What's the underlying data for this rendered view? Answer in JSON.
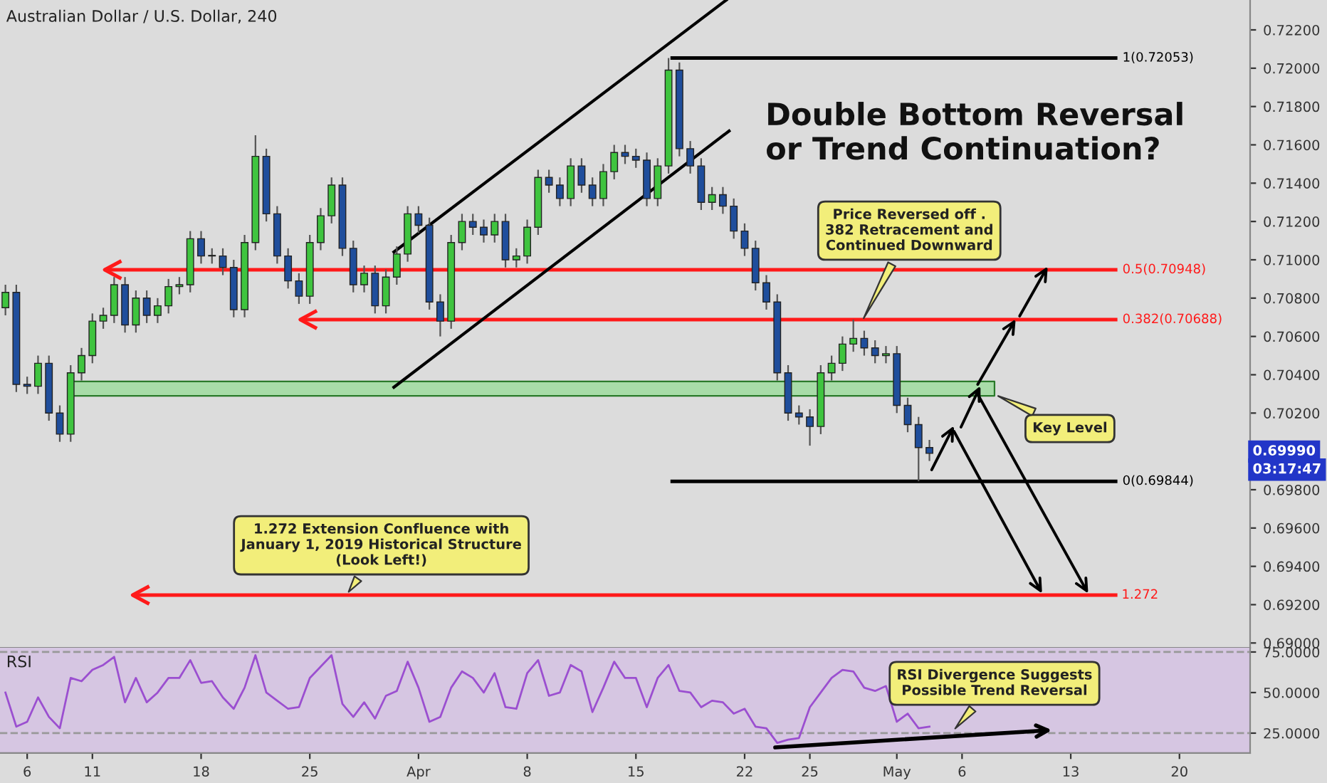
{
  "chart_data": [
    {
      "type": "candlestick",
      "title": "Australian Dollar / U.S. Dollar, 240",
      "categories": [
        null,
        null,
        null,
        null,
        null,
        null,
        null,
        null,
        null,
        null,
        null,
        null,
        null,
        null,
        null,
        null,
        null,
        null,
        null,
        null,
        null,
        null,
        null,
        null,
        null,
        null,
        null,
        null,
        null,
        null,
        null,
        null,
        null,
        null,
        null,
        null,
        null,
        null,
        null,
        null,
        null,
        null,
        null,
        null,
        null,
        null,
        null,
        null,
        null,
        null,
        null,
        null,
        null,
        null,
        null,
        null,
        null,
        null,
        null,
        null,
        null,
        null,
        null,
        null,
        null,
        null,
        null,
        null,
        null,
        null,
        null,
        null,
        null,
        null,
        null,
        null,
        null,
        null,
        null,
        null,
        null,
        null,
        null,
        null,
        null,
        null,
        null,
        null,
        null,
        null,
        null,
        null,
        null,
        null,
        null,
        null,
        null,
        null,
        null,
        null,
        null,
        null,
        null,
        null,
        null,
        null,
        null,
        null,
        null,
        null,
        null,
        null,
        null,
        null,
        null
      ],
      "ohlc": [
        [
          0.7075,
          0.7087,
          0.7071,
          0.7083
        ],
        [
          0.7083,
          0.7087,
          0.7031,
          0.7035
        ],
        [
          0.7035,
          0.7039,
          0.703,
          0.7034
        ],
        [
          0.7034,
          0.705,
          0.703,
          0.7046
        ],
        [
          0.7046,
          0.705,
          0.7016,
          0.702
        ],
        [
          0.702,
          0.7024,
          0.7005,
          0.7009
        ],
        [
          0.7009,
          0.7045,
          0.7005,
          0.7041
        ],
        [
          0.7041,
          0.7054,
          0.7037,
          0.705
        ],
        [
          0.705,
          0.7072,
          0.7046,
          0.7068
        ],
        [
          0.7068,
          0.7075,
          0.7064,
          0.7071
        ],
        [
          0.7071,
          0.7091,
          0.7067,
          0.7087
        ],
        [
          0.7087,
          0.7091,
          0.7062,
          0.7066
        ],
        [
          0.7066,
          0.7084,
          0.7062,
          0.708
        ],
        [
          0.708,
          0.7084,
          0.7067,
          0.7071
        ],
        [
          0.7071,
          0.708,
          0.7067,
          0.7076
        ],
        [
          0.7076,
          0.709,
          0.7072,
          0.7086
        ],
        [
          0.7086,
          0.7091,
          0.7082,
          0.7087
        ],
        [
          0.7087,
          0.7115,
          0.7083,
          0.7111
        ],
        [
          0.7111,
          0.7115,
          0.7098,
          0.7102
        ],
        [
          0.7102,
          0.7106,
          0.7098,
          0.7102
        ],
        [
          0.7102,
          0.7106,
          0.7092,
          0.7096
        ],
        [
          0.7096,
          0.71,
          0.707,
          0.7074
        ],
        [
          0.7074,
          0.7113,
          0.707,
          0.7109
        ],
        [
          0.7109,
          0.7165,
          0.7105,
          0.7154
        ],
        [
          0.7154,
          0.7158,
          0.712,
          0.7124
        ],
        [
          0.7124,
          0.7128,
          0.7098,
          0.7102
        ],
        [
          0.7102,
          0.7106,
          0.7085,
          0.7089
        ],
        [
          0.7089,
          0.7093,
          0.7077,
          0.7081
        ],
        [
          0.7081,
          0.7113,
          0.7077,
          0.7109
        ],
        [
          0.7109,
          0.7127,
          0.7105,
          0.7123
        ],
        [
          0.7123,
          0.7143,
          0.7119,
          0.7139
        ],
        [
          0.7139,
          0.7143,
          0.7102,
          0.7106
        ],
        [
          0.7106,
          0.711,
          0.7083,
          0.7087
        ],
        [
          0.7087,
          0.7097,
          0.7083,
          0.7093
        ],
        [
          0.7093,
          0.7097,
          0.7072,
          0.7076
        ],
        [
          0.7076,
          0.7095,
          0.7072,
          0.7091
        ],
        [
          0.7091,
          0.7107,
          0.7087,
          0.7103
        ],
        [
          0.7103,
          0.7128,
          0.7099,
          0.7124
        ],
        [
          0.7124,
          0.7128,
          0.7114,
          0.7118
        ],
        [
          0.7118,
          0.7122,
          0.7074,
          0.7078
        ],
        [
          0.7078,
          0.7082,
          0.706,
          0.7068
        ],
        [
          0.7068,
          0.7113,
          0.7064,
          0.7109
        ],
        [
          0.7109,
          0.7124,
          0.7105,
          0.712
        ],
        [
          0.712,
          0.7124,
          0.7113,
          0.7117
        ],
        [
          0.7117,
          0.7121,
          0.7109,
          0.7113
        ],
        [
          0.7113,
          0.7124,
          0.7109,
          0.712
        ],
        [
          0.712,
          0.7124,
          0.7096,
          0.71
        ],
        [
          0.71,
          0.7106,
          0.7096,
          0.7102
        ],
        [
          0.7102,
          0.7121,
          0.7098,
          0.7117
        ],
        [
          0.7117,
          0.7147,
          0.7113,
          0.7143
        ],
        [
          0.7143,
          0.7147,
          0.7135,
          0.7139
        ],
        [
          0.7139,
          0.7143,
          0.7128,
          0.7132
        ],
        [
          0.7132,
          0.7153,
          0.7128,
          0.7149
        ],
        [
          0.7149,
          0.7153,
          0.7135,
          0.7139
        ],
        [
          0.7139,
          0.7143,
          0.7128,
          0.7132
        ],
        [
          0.7132,
          0.715,
          0.7128,
          0.7146
        ],
        [
          0.7146,
          0.716,
          0.7142,
          0.7156
        ],
        [
          0.7156,
          0.716,
          0.715,
          0.7154
        ],
        [
          0.7154,
          0.7158,
          0.7148,
          0.7152
        ],
        [
          0.7152,
          0.7156,
          0.7128,
          0.7132
        ],
        [
          0.7132,
          0.7153,
          0.7128,
          0.7149
        ],
        [
          0.7149,
          0.72053,
          0.7145,
          0.7199
        ],
        [
          0.7199,
          0.7203,
          0.7154,
          0.7158
        ],
        [
          0.7158,
          0.7162,
          0.7145,
          0.7149
        ],
        [
          0.7149,
          0.7153,
          0.7126,
          0.713
        ],
        [
          0.713,
          0.7138,
          0.7126,
          0.7134
        ],
        [
          0.7134,
          0.7138,
          0.7124,
          0.7128
        ],
        [
          0.7128,
          0.7132,
          0.7111,
          0.7115
        ],
        [
          0.7115,
          0.7119,
          0.7102,
          0.7106
        ],
        [
          0.7106,
          0.711,
          0.7084,
          0.7088
        ],
        [
          0.7088,
          0.7092,
          0.7074,
          0.7078
        ],
        [
          0.7078,
          0.7082,
          0.7037,
          0.7041
        ],
        [
          0.7041,
          0.7045,
          0.7016,
          0.702
        ],
        [
          0.702,
          0.7024,
          0.7014,
          0.7018
        ],
        [
          0.7018,
          0.7022,
          0.7003,
          0.7013
        ],
        [
          0.7013,
          0.7045,
          0.7009,
          0.7041
        ],
        [
          0.7041,
          0.705,
          0.7037,
          0.7046
        ],
        [
          0.7046,
          0.706,
          0.7042,
          0.7056
        ],
        [
          0.7056,
          0.70688,
          0.7052,
          0.7059
        ],
        [
          0.7059,
          0.7063,
          0.705,
          0.7054
        ],
        [
          0.7054,
          0.7058,
          0.7046,
          0.705
        ],
        [
          0.705,
          0.7055,
          0.7046,
          0.7051
        ],
        [
          0.7051,
          0.7055,
          0.702,
          0.7024
        ],
        [
          0.7024,
          0.7028,
          0.701,
          0.7014
        ],
        [
          0.7014,
          0.7018,
          0.69844,
          0.7002
        ],
        [
          0.7002,
          0.7006,
          0.6995,
          0.6999
        ],
        null,
        null,
        null,
        null,
        null,
        null,
        null,
        null,
        null,
        null,
        null,
        null,
        null,
        null,
        null,
        null,
        null,
        null,
        null,
        null,
        null,
        null,
        null,
        null,
        null,
        null,
        null,
        null,
        null
      ],
      "ylim": [
        0.68975,
        0.72356
      ],
      "yticks": [
        {
          "value": 0.69,
          "label": "0.69000"
        },
        {
          "value": 0.692,
          "label": "0.69200"
        },
        {
          "value": 0.694,
          "label": "0.69400"
        },
        {
          "value": 0.696,
          "label": "0.69600"
        },
        {
          "value": 0.698,
          "label": "0.69800"
        },
        {
          "value": 0.702,
          "label": "0.70200"
        },
        {
          "value": 0.704,
          "label": "0.70400"
        },
        {
          "value": 0.706,
          "label": "0.70600"
        },
        {
          "value": 0.708,
          "label": "0.70800"
        },
        {
          "value": 0.71,
          "label": "0.71000"
        },
        {
          "value": 0.712,
          "label": "0.71200"
        },
        {
          "value": 0.714,
          "label": "0.71400"
        },
        {
          "value": 0.716,
          "label": "0.71600"
        },
        {
          "value": 0.718,
          "label": "0.71800"
        },
        {
          "value": 0.72,
          "label": "0.72000"
        },
        {
          "value": 0.722,
          "label": "0.72200"
        }
      ],
      "tick_labels": "y",
      "ref_lines": [
        {
          "axis": "y",
          "value": 0.72053,
          "label": "1(0.72053)",
          "color": "#000000"
        },
        {
          "axis": "y",
          "value": 0.70948,
          "label": "0.5(0.70948)",
          "color": "#ff1a1a"
        },
        {
          "axis": "y",
          "value": 0.70688,
          "label": "0.382(0.70688)",
          "color": "#ff1a1a"
        },
        {
          "axis": "y",
          "value": 0.69844,
          "label": "0(0.69844)",
          "color": "#000000"
        },
        {
          "axis": "y",
          "value": 0.6925,
          "color": "#ff1a1a"
        }
      ],
      "bands": [
        {
          "axis": "y",
          "from": 0.7029,
          "to": 0.70365,
          "color": "#a8dca8"
        }
      ],
      "annotations": [
        "Double Bottom Reversal\nor Trend Continuation?",
        "Price Reversed off .\n382 Retracement and\nContinued Downward",
        "Key Level",
        {
          "text": "1.272 Extension Confluence with\nJanuary 1, 2019 Historical Structure\n(Look Left!)",
          "y": 0.6925
        },
        "1.272",
        "0.69990",
        "03:17:47"
      ]
    },
    {
      "type": "line",
      "title": "RSI",
      "categories": [
        null,
        null,
        "6",
        null,
        null,
        null,
        null,
        null,
        "11",
        null,
        null,
        null,
        null,
        null,
        null,
        null,
        null,
        null,
        "18",
        null,
        null,
        null,
        null,
        null,
        null,
        null,
        null,
        null,
        "25",
        null,
        null,
        null,
        null,
        null,
        null,
        null,
        null,
        null,
        "Apr",
        null,
        null,
        null,
        null,
        null,
        null,
        null,
        null,
        null,
        "8",
        null,
        null,
        null,
        null,
        null,
        null,
        null,
        null,
        null,
        "15",
        null,
        null,
        null,
        null,
        null,
        null,
        null,
        null,
        null,
        "22",
        null,
        null,
        null,
        null,
        null,
        "25",
        null,
        null,
        null,
        null,
        null,
        null,
        null,
        "May",
        null,
        null,
        null,
        null,
        null,
        "6",
        null,
        null,
        null,
        null,
        null,
        null,
        null,
        null,
        null,
        "13",
        null,
        null,
        null,
        null,
        null,
        null,
        null,
        null,
        null,
        "20",
        null,
        null,
        null,
        null,
        null,
        null
      ],
      "series": [
        {
          "color": "#9b4fd0",
          "values": [
            50,
            29,
            32,
            47,
            35,
            28,
            59,
            57,
            64,
            67,
            72,
            44,
            59,
            44,
            50,
            59,
            59,
            70,
            56,
            57,
            47,
            40,
            53,
            73,
            50,
            45,
            40,
            41,
            59,
            66,
            73,
            43,
            35,
            44,
            34,
            48,
            51,
            69,
            53,
            32,
            35,
            53,
            63,
            59,
            50,
            62,
            41,
            40,
            62,
            70,
            48,
            50,
            67,
            63,
            38,
            53,
            69,
            59,
            59,
            41,
            59,
            67,
            51,
            50,
            41,
            45,
            44,
            37,
            40,
            29,
            28,
            19,
            21,
            22,
            41,
            50,
            59,
            64,
            63,
            53,
            51,
            54,
            32,
            37,
            28,
            29,
            null,
            null,
            null,
            null,
            null,
            null,
            null,
            null,
            null,
            null,
            null,
            null,
            null,
            null,
            null,
            null,
            null,
            null,
            null,
            null,
            null,
            null,
            null,
            null,
            null,
            null,
            null,
            null,
            null
          ]
        }
      ],
      "ylim": [
        12.7,
        77.6
      ],
      "yticks": [
        {
          "value": 25,
          "label": "25.0000"
        },
        {
          "value": 50,
          "label": "50.0000"
        },
        {
          "value": 75,
          "label": "75.0000"
        }
      ],
      "ref_lines": [
        {
          "axis": "y",
          "value": 75,
          "color": "#999999",
          "line_style": "dashed"
        },
        {
          "axis": "y",
          "value": 25,
          "color": "#999999",
          "line_style": "dashed"
        }
      ],
      "annotations": [
        {
          "text": "RSI Divergence Suggests\nPossible Trend Reversal",
          "y": 26
        }
      ]
    }
  ]
}
